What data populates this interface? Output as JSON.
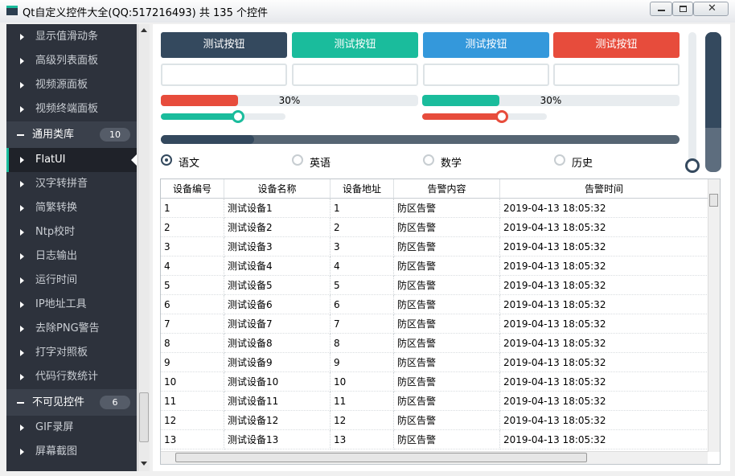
{
  "window": {
    "title": "Qt自定义控件大全(QQ:517216493) 共 135 个控件"
  },
  "nav": {
    "items": [
      {
        "text": "显示值滑动条"
      },
      {
        "text": "高级列表面板"
      },
      {
        "text": "视频源面板"
      },
      {
        "text": "视频终端面板"
      },
      {
        "text": "通用类库",
        "badge": "10",
        "group": true
      },
      {
        "text": "FlatUI",
        "selected": true
      },
      {
        "text": "汉字转拼音"
      },
      {
        "text": "简繁转换"
      },
      {
        "text": "Ntp校时"
      },
      {
        "text": "日志输出"
      },
      {
        "text": "运行时间"
      },
      {
        "text": "IP地址工具"
      },
      {
        "text": "去除PNG警告"
      },
      {
        "text": "打字对照板"
      },
      {
        "text": "代码行数统计"
      },
      {
        "text": "不可见控件",
        "badge": "6",
        "group": true
      },
      {
        "text": "GIF录屏"
      },
      {
        "text": "屏幕截图"
      }
    ]
  },
  "controls": {
    "range": [
      0,
      100
    ],
    "buttons": [
      {
        "text": "测试按钮",
        "color": "#34495e"
      },
      {
        "text": "测试按钮",
        "color": "#1abc9c"
      },
      {
        "text": "测试按钮",
        "color": "#3498db"
      },
      {
        "text": "测试按钮",
        "color": "#e74c3c"
      }
    ],
    "progress_bars": [
      {
        "value": 30,
        "label": "30%",
        "color": "#e74c3c"
      },
      {
        "value": 30,
        "label": "30%",
        "color": "#1abc9c"
      }
    ],
    "sliders": [
      {
        "value": 62,
        "color": "#1abc9c"
      },
      {
        "value": 64,
        "color": "#e74c3c"
      }
    ],
    "long_slider": {
      "value": 18
    },
    "radios": [
      {
        "text": "语文",
        "checked": true
      },
      {
        "text": "英语"
      },
      {
        "text": "数学"
      },
      {
        "text": "历史"
      }
    ]
  },
  "table": {
    "columns": [
      "设备编号",
      "设备名称",
      "设备地址",
      "告警内容",
      "告警时间"
    ],
    "rows": [
      [
        "1",
        "测试设备1",
        "1",
        "防区告警",
        "2019-04-13 18:05:32"
      ],
      [
        "2",
        "测试设备2",
        "2",
        "防区告警",
        "2019-04-13 18:05:32"
      ],
      [
        "3",
        "测试设备3",
        "3",
        "防区告警",
        "2019-04-13 18:05:32"
      ],
      [
        "4",
        "测试设备4",
        "4",
        "防区告警",
        "2019-04-13 18:05:32"
      ],
      [
        "5",
        "测试设备5",
        "5",
        "防区告警",
        "2019-04-13 18:05:32"
      ],
      [
        "6",
        "测试设备6",
        "6",
        "防区告警",
        "2019-04-13 18:05:32"
      ],
      [
        "7",
        "测试设备7",
        "7",
        "防区告警",
        "2019-04-13 18:05:32"
      ],
      [
        "8",
        "测试设备8",
        "8",
        "防区告警",
        "2019-04-13 18:05:32"
      ],
      [
        "9",
        "测试设备9",
        "9",
        "防区告警",
        "2019-04-13 18:05:32"
      ],
      [
        "10",
        "测试设备10",
        "10",
        "防区告警",
        "2019-04-13 18:05:32"
      ],
      [
        "11",
        "测试设备11",
        "11",
        "防区告警",
        "2019-04-13 18:05:32"
      ],
      [
        "12",
        "测试设备12",
        "12",
        "防区告警",
        "2019-04-13 18:05:32"
      ],
      [
        "13",
        "测试设备13",
        "13",
        "防区告警",
        "2019-04-13 18:05:32"
      ]
    ]
  }
}
